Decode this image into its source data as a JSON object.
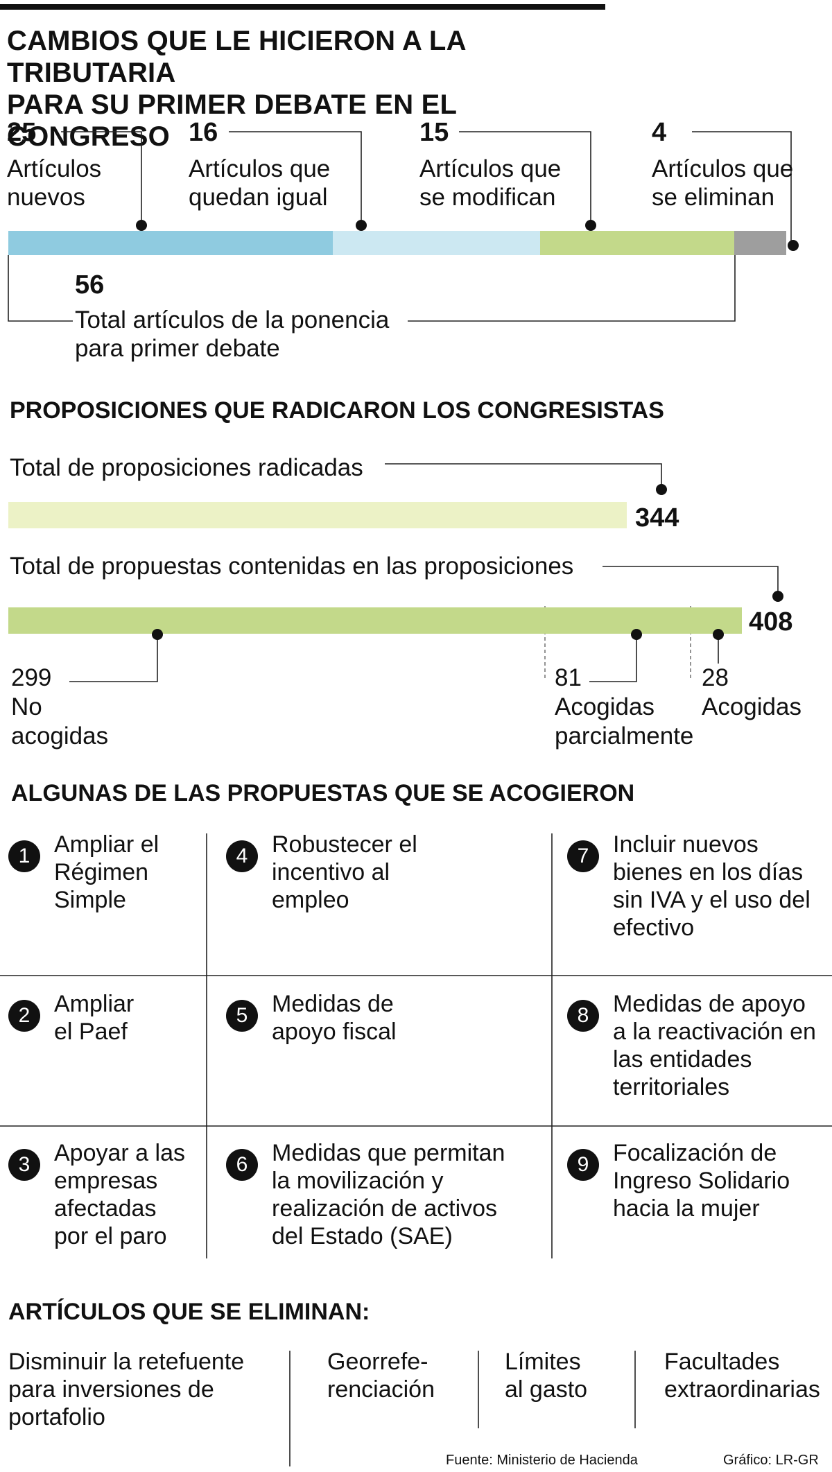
{
  "title": {
    "line1": "CAMBIOS QUE LE HICIERON A LA TRIBUTARIA",
    "line2": "PARA SU PRIMER DEBATE EN EL CONGRESO"
  },
  "articles": {
    "segments": [
      {
        "value": "25",
        "label1": "Artículos",
        "label2": "nuevos",
        "color": "#8fcbe0"
      },
      {
        "value": "16",
        "label1": "Artículos que",
        "label2": "quedan igual",
        "color": "#cce8f2"
      },
      {
        "value": "15",
        "label1": "Artículos que",
        "label2": "se modifican",
        "color": "#c3d98a"
      },
      {
        "value": "4",
        "label1": "Artículos que",
        "label2": "se eliminan",
        "color": "#9e9e9e"
      }
    ],
    "total_value": "56",
    "total_label1": "Total artículos de la ponencia",
    "total_label2": "para primer debate"
  },
  "propositions": {
    "heading": "PROPOSICIONES QUE RADICARON LOS CONGRESISTAS",
    "filed_label": "Total de proposiciones radicadas",
    "filed_value": "344",
    "filed_color": "#ecf2c6",
    "contained_label": "Total de propuestas contenidas en las proposiciones",
    "contained_value": "408",
    "contained_color": "#c3d98a",
    "breakdown": [
      {
        "value": "299",
        "label1": "No",
        "label2": "acogidas"
      },
      {
        "value": "81",
        "label1": "Acogidas",
        "label2": "parcialmente"
      },
      {
        "value": "28",
        "label1": "Acogidas",
        "label2": ""
      }
    ]
  },
  "accepted": {
    "heading": "ALGUNAS DE LAS PROPUESTAS QUE SE ACOGIERON",
    "items": [
      {
        "n": "1",
        "lines": [
          "Ampliar el",
          "Régimen",
          "Simple"
        ]
      },
      {
        "n": "2",
        "lines": [
          "Ampliar",
          "el Paef"
        ]
      },
      {
        "n": "3",
        "lines": [
          "Apoyar a las",
          "empresas",
          "afectadas",
          "por el paro"
        ]
      },
      {
        "n": "4",
        "lines": [
          "Robustecer el",
          "incentivo al",
          "empleo"
        ]
      },
      {
        "n": "5",
        "lines": [
          "Medidas de",
          "apoyo fiscal"
        ]
      },
      {
        "n": "6",
        "lines": [
          "Medidas que permitan",
          "la movilización y",
          "realización de activos",
          "del Estado (SAE)"
        ]
      },
      {
        "n": "7",
        "lines": [
          "Incluir nuevos",
          "bienes en los días",
          "sin IVA y el uso del",
          "efectivo"
        ]
      },
      {
        "n": "8",
        "lines": [
          "Medidas de apoyo",
          "a la reactivación en",
          "las entidades",
          "territoriales"
        ]
      },
      {
        "n": "9",
        "lines": [
          "Focalización de",
          "Ingreso Solidario",
          "hacia la mujer"
        ]
      }
    ]
  },
  "eliminated": {
    "heading": "ARTÍCULOS QUE SE ELIMINAN:",
    "items": [
      {
        "lines": [
          "Disminuir la retefuente",
          "para inversiones de",
          "portafolio"
        ]
      },
      {
        "lines": [
          "Georrefe-",
          "renciación"
        ]
      },
      {
        "lines": [
          "Límites",
          "al gasto"
        ]
      },
      {
        "lines": [
          "Facultades",
          "extraordinarias"
        ]
      }
    ]
  },
  "footer": {
    "source": "Fuente: Ministerio de Hacienda",
    "credit": "Gráfico: LR-GR"
  },
  "chart_data": [
    {
      "type": "bar",
      "title": "CAMBIOS QUE LE HICIERON A LA TRIBUTARIA PARA SU PRIMER DEBATE EN EL CONGRESO",
      "stacked": true,
      "categories": [
        "Artículos nuevos",
        "Artículos que quedan igual",
        "Artículos que se modifican",
        "Artículos que se eliminan"
      ],
      "values": [
        25,
        16,
        15,
        4
      ],
      "total": 56,
      "total_label": "Total artículos de la ponencia para primer debate"
    },
    {
      "type": "bar",
      "title": "PROPOSICIONES QUE RADICARON LOS CONGRESISTAS",
      "categories": [
        "Total de proposiciones radicadas",
        "Total de propuestas contenidas en las proposiciones"
      ],
      "values": [
        344,
        408
      ],
      "breakdown": {
        "categories": [
          "No acogidas",
          "Acogidas parcialmente",
          "Acogidas"
        ],
        "values": [
          299,
          81,
          28
        ]
      }
    }
  ]
}
